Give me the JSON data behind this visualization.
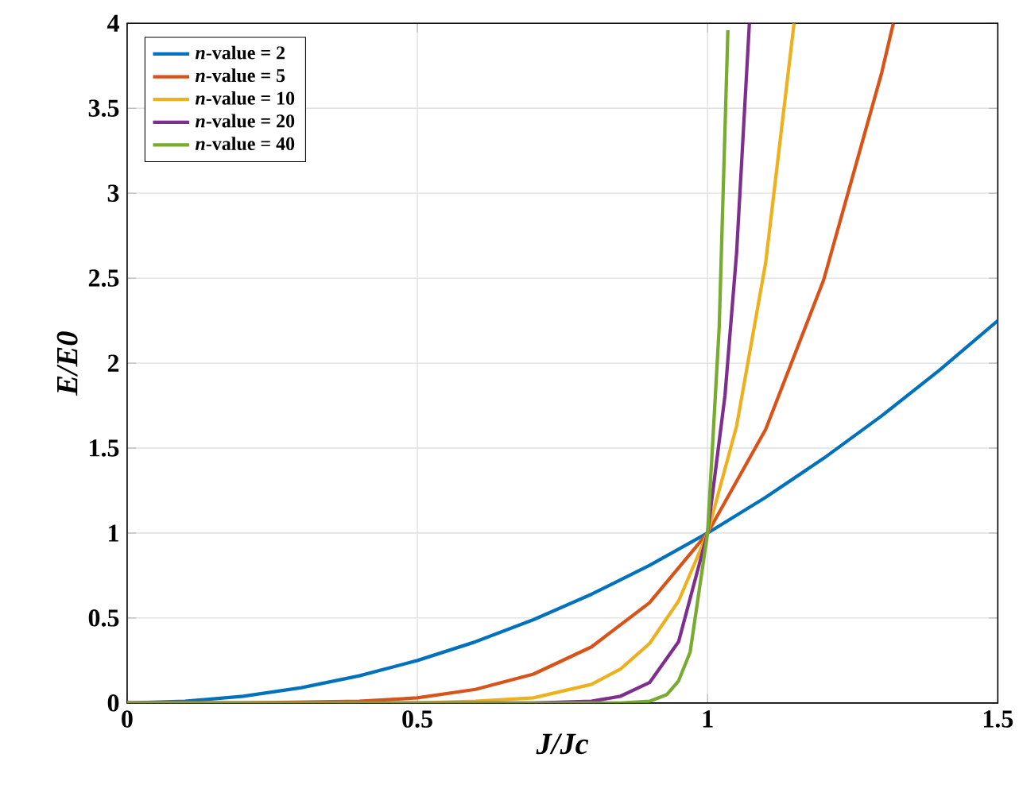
{
  "chart_data": {
    "type": "line",
    "xlabel": "J/Jc",
    "ylabel": "E/E0",
    "xlim": [
      0,
      1.5
    ],
    "ylim": [
      0,
      4
    ],
    "xticks": [
      0,
      0.5,
      1,
      1.5
    ],
    "yticks": [
      0,
      0.5,
      1,
      1.5,
      2,
      2.5,
      3,
      3.5,
      4
    ],
    "grid": true,
    "legend": "top left",
    "line_style": "solid",
    "marker": "none",
    "series": [
      {
        "name": "*n*-value = 2",
        "color": "#0072bd",
        "x": [
          0,
          0.1,
          0.2,
          0.3,
          0.4,
          0.5,
          0.6,
          0.7,
          0.8,
          0.9,
          1,
          1.1,
          1.2,
          1.3,
          1.4,
          1.5
        ],
        "values": [
          0,
          0.01,
          0.04,
          0.09,
          0.16,
          0.25,
          0.36,
          0.49,
          0.64,
          0.81,
          1,
          1.21,
          1.44,
          1.69,
          1.96,
          2.25
        ]
      },
      {
        "name": "*n*-value = 5",
        "color": "#d95319",
        "x": [
          0,
          0.2,
          0.4,
          0.5,
          0.6,
          0.7,
          0.8,
          0.9,
          1,
          1.1,
          1.2,
          1.3,
          1.32
        ],
        "values": [
          0,
          0,
          0.01,
          0.03,
          0.08,
          0.17,
          0.33,
          0.59,
          1,
          1.61,
          2.49,
          3.71,
          4
        ]
      },
      {
        "name": "*n*-value = 10",
        "color": "#edb120",
        "x": [
          0,
          0.5,
          0.6,
          0.7,
          0.8,
          0.85,
          0.9,
          0.95,
          1,
          1.05,
          1.1,
          1.149
        ],
        "values": [
          0,
          0,
          0.01,
          0.03,
          0.11,
          0.2,
          0.35,
          0.6,
          1,
          1.63,
          2.59,
          4
        ]
      },
      {
        "name": "*n*-value = 20",
        "color": "#7e2f8e",
        "x": [
          0,
          0.7,
          0.8,
          0.85,
          0.9,
          0.95,
          1,
          1.03,
          1.05,
          1.072
        ],
        "values": [
          0,
          0,
          0.01,
          0.04,
          0.12,
          0.36,
          1,
          1.81,
          2.65,
          4
        ]
      },
      {
        "name": "*n*-value = 40",
        "color": "#77ac30",
        "x": [
          0,
          0.8,
          0.85,
          0.9,
          0.93,
          0.95,
          0.97,
          1,
          1.02,
          1.035
        ],
        "values": [
          0,
          0,
          0,
          0.01,
          0.05,
          0.13,
          0.3,
          1,
          2.21,
          3.96
        ]
      }
    ]
  }
}
